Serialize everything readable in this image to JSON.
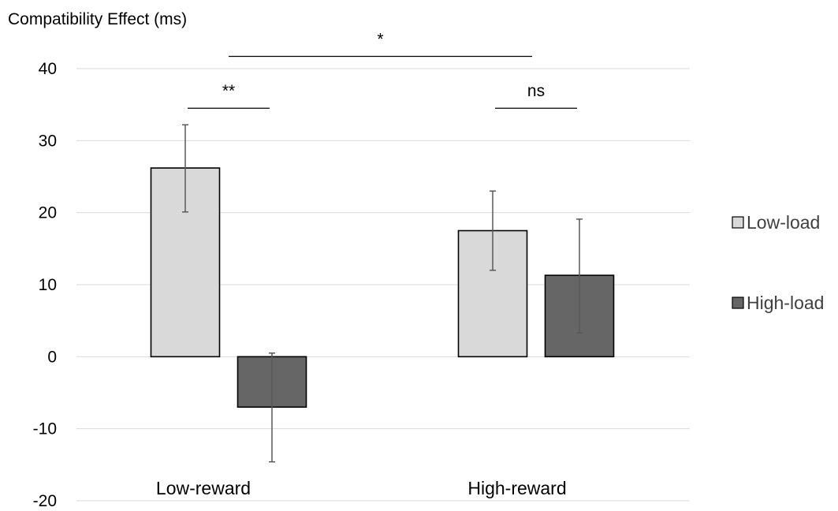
{
  "chart_data": {
    "type": "bar",
    "ylabel": "Compatibility Effect (ms)",
    "categories": [
      "Low-reward",
      "High-reward"
    ],
    "series": [
      {
        "name": "Low-load",
        "color": "#d9d9d9",
        "values": [
          26.2,
          17.5
        ],
        "error_low": [
          20.1,
          12.0
        ],
        "error_high": [
          32.2,
          23.0
        ]
      },
      {
        "name": "High-load",
        "color": "#666666",
        "values": [
          -7.0,
          11.3
        ],
        "error_low": [
          -14.6,
          3.3
        ],
        "error_high": [
          0.5,
          19.1
        ]
      }
    ],
    "ylim": [
      -20,
      40
    ],
    "yticks": [
      "-20",
      "-10",
      "0",
      "10",
      "20",
      "30",
      "40"
    ],
    "ytick_values": [
      -20,
      -10,
      0,
      10,
      20,
      30,
      40
    ],
    "grid": true,
    "legend_position": "right",
    "significance": [
      {
        "label": "**",
        "from_category": 0,
        "to_category": 0,
        "level": 34.5,
        "span": "within"
      },
      {
        "label": "ns",
        "from_category": 1,
        "to_category": 1,
        "level": 34.5,
        "span": "within"
      },
      {
        "label": "*",
        "from_category": 0,
        "to_category": 1,
        "level": 41.7,
        "span": "between"
      }
    ]
  }
}
